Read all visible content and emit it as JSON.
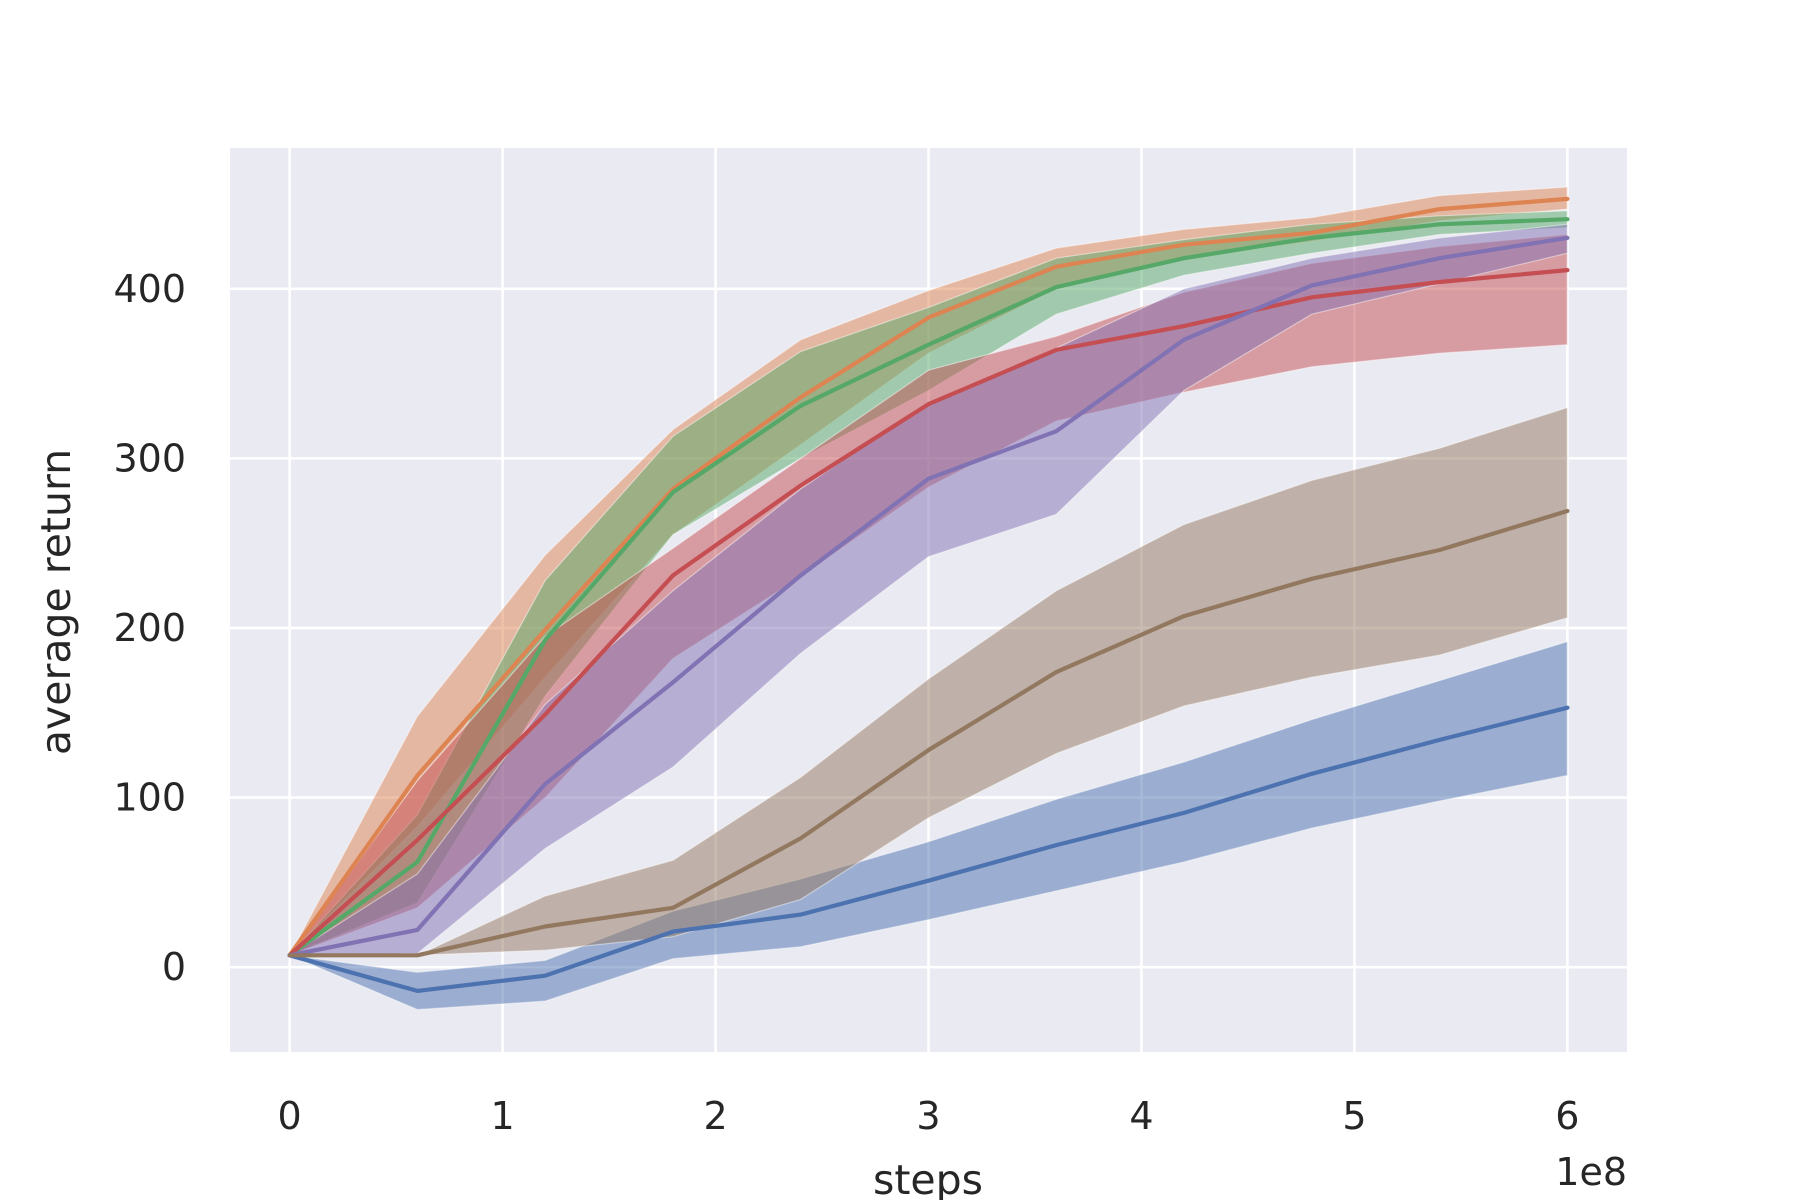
{
  "chart_data": {
    "type": "line",
    "title": "",
    "xlabel": "steps",
    "ylabel": "average return",
    "x_offset_label": "1e8",
    "xlim": [
      -0.28,
      6.28
    ],
    "ylim": [
      -50,
      483
    ],
    "x_ticks": [
      0,
      1,
      2,
      3,
      4,
      5,
      6
    ],
    "x_tick_labels": [
      "0",
      "1",
      "2",
      "3",
      "4",
      "5",
      "6"
    ],
    "y_ticks": [
      0,
      100,
      200,
      300,
      400
    ],
    "y_tick_labels": [
      "0",
      "100",
      "200",
      "300",
      "400"
    ],
    "grid": true,
    "legend": "none",
    "x": [
      0,
      0.6,
      1.2,
      1.8,
      2.4,
      3.0,
      3.6,
      4.2,
      4.8,
      5.4,
      6.0
    ],
    "series": [
      {
        "color": "#4c72b0",
        "values": [
          7,
          -14,
          -5,
          21,
          31,
          51,
          72,
          91,
          114,
          134,
          153
        ],
        "lower": [
          7,
          -25,
          -20,
          5,
          12,
          28,
          45,
          62,
          82,
          98,
          113
        ],
        "upper": [
          7,
          -3,
          4,
          33,
          52,
          74,
          99,
          121,
          146,
          169,
          192
        ]
      },
      {
        "color": "#dd8452",
        "values": [
          7,
          113,
          199,
          282,
          336,
          383,
          413,
          426,
          433,
          447,
          453
        ],
        "lower": [
          7,
          83,
          171,
          255,
          308,
          362,
          400,
          418,
          428,
          440,
          447
        ],
        "upper": [
          7,
          148,
          243,
          317,
          370,
          399,
          424,
          435,
          442,
          455,
          460
        ]
      },
      {
        "color": "#55a868",
        "values": [
          7,
          62,
          193,
          280,
          331,
          367,
          401,
          418,
          430,
          438,
          441
        ],
        "lower": [
          7,
          38,
          160,
          255,
          300,
          340,
          385,
          408,
          421,
          432,
          436
        ],
        "upper": [
          7,
          90,
          228,
          313,
          363,
          389,
          418,
          429,
          438,
          443,
          446
        ]
      },
      {
        "color": "#c44e52",
        "values": [
          7,
          75,
          149,
          231,
          284,
          332,
          364,
          378,
          395,
          404,
          411
        ],
        "lower": [
          7,
          35,
          100,
          182,
          230,
          283,
          322,
          339,
          354,
          362,
          367
        ],
        "upper": [
          7,
          110,
          195,
          247,
          300,
          352,
          372,
          398,
          415,
          425,
          432
        ]
      },
      {
        "color": "#8172b3",
        "values": [
          7,
          22,
          108,
          168,
          231,
          288,
          316,
          370,
          402,
          418,
          430
        ],
        "lower": [
          7,
          8,
          70,
          118,
          185,
          242,
          267,
          340,
          385,
          403,
          421
        ],
        "upper": [
          7,
          55,
          155,
          222,
          282,
          333,
          365,
          400,
          418,
          430,
          438
        ]
      },
      {
        "color": "#937860",
        "values": [
          7,
          7,
          24,
          35,
          76,
          128,
          174,
          207,
          229,
          246,
          269
        ],
        "lower": [
          7,
          7,
          10,
          18,
          40,
          88,
          126,
          154,
          171,
          184,
          206
        ],
        "upper": [
          7,
          7,
          42,
          63,
          112,
          170,
          222,
          261,
          287,
          306,
          330
        ]
      }
    ]
  }
}
